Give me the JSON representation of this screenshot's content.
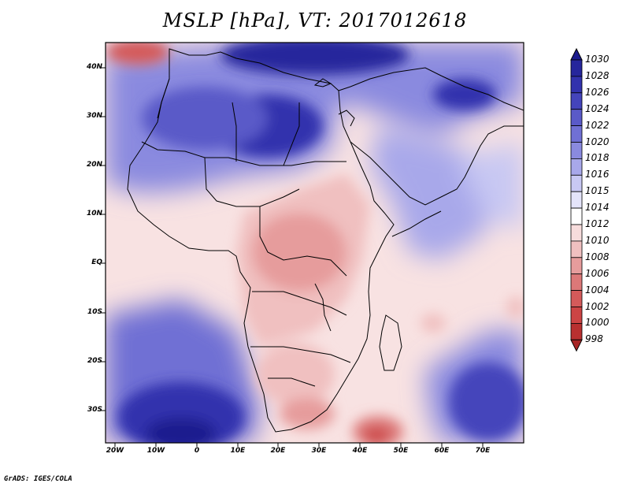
{
  "title": "MSLP [hPa], VT: 2017012618",
  "credit": "GrADS: IGES/COLA",
  "lat_labels": [
    "40N",
    "30N",
    "20N",
    "10N",
    "EQ",
    "10S",
    "20S",
    "30S"
  ],
  "lon_labels": [
    "20W",
    "10W",
    "0",
    "10E",
    "20E",
    "30E",
    "40E",
    "50E",
    "60E",
    "70E"
  ],
  "colorbar": {
    "levels": [
      "1030",
      "1028",
      "1026",
      "1024",
      "1022",
      "1020",
      "1018",
      "1016",
      "1015",
      "1014",
      "1012",
      "1010",
      "1008",
      "1006",
      "1004",
      "1002",
      "1000",
      "998"
    ],
    "colors": [
      "#1c1c8e",
      "#26269c",
      "#3232ad",
      "#4444bb",
      "#5a5ac8",
      "#7070d4",
      "#8a8adf",
      "#a8a8ea",
      "#c8c8f3",
      "#e4e4fa",
      "#ffffff",
      "#f7dcdc",
      "#f0c0c0",
      "#e69c9c",
      "#dc7878",
      "#d45a5a",
      "#cc4444",
      "#b83030",
      "#a82626"
    ]
  },
  "map": {
    "region": "Africa, Middle East and surrounding ocean",
    "lat_range": [
      -36,
      45
    ],
    "lon_range": [
      -22,
      80
    ],
    "features": [
      {
        "name": "subtropical high south atlantic",
        "lon": -3,
        "lat": -35,
        "value": 1028
      },
      {
        "name": "mediterranean-libya high",
        "lon": 18,
        "lat": 28,
        "value": 1026
      },
      {
        "name": "black sea high",
        "lon": 25,
        "lat": 42,
        "value": 1028
      },
      {
        "name": "iran high",
        "lon": 58,
        "lat": 33,
        "value": 1024
      },
      {
        "name": "central africa low",
        "lon": 20,
        "lat": 2,
        "value": 1009
      },
      {
        "name": "mozambique channel low",
        "lon": 45,
        "lat": -34,
        "value": 1002
      },
      {
        "name": "indian ocean high",
        "lon": 73,
        "lat": -28,
        "value": 1024
      },
      {
        "name": "iberia low",
        "lon": -13,
        "lat": 44,
        "value": 1004
      }
    ]
  }
}
